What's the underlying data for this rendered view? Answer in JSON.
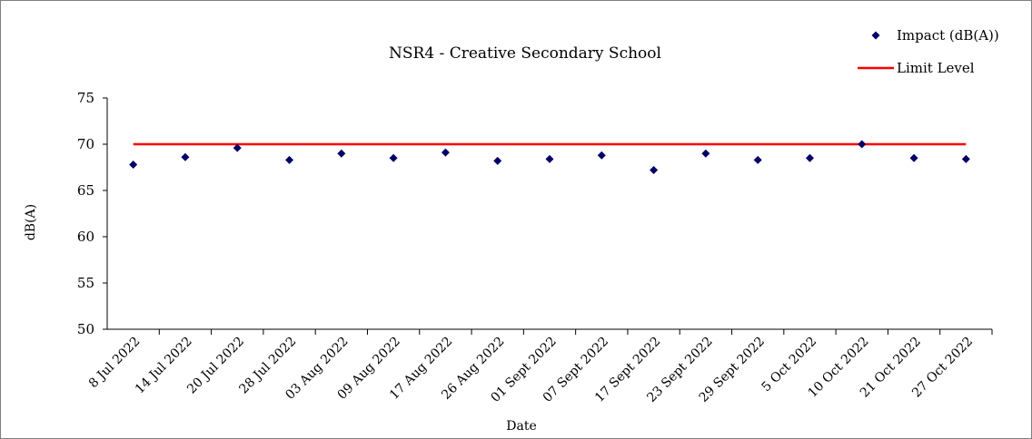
{
  "chart_data": {
    "type": "scatter",
    "title": "NSR4 - Creative Secondary School",
    "xlabel": "Date",
    "ylabel": "dB(A)",
    "ylim": [
      50,
      75
    ],
    "yticks": [
      50,
      55,
      60,
      65,
      70,
      75
    ],
    "grid": false,
    "legend_position": "top-right",
    "categories": [
      "8 Jul 2022",
      "14 Jul 2022",
      "20 Jul 2022",
      "28 Jul 2022",
      "03 Aug 2022",
      "09 Aug 2022",
      "17 Aug 2022",
      "26 Aug 2022",
      "01 Sept 2022",
      "07 Sept 2022",
      "17 Sept 2022",
      "23 Sept 2022",
      "29 Sept 2022",
      "5 Oct 2022",
      "10 Oct 2022",
      "21 Oct 2022",
      "27 Oct 2022"
    ],
    "series": [
      {
        "name": "Impact (dB(A))",
        "kind": "scatter",
        "marker": "diamond",
        "color": "#000066",
        "values": [
          67.8,
          68.6,
          69.6,
          68.3,
          69.0,
          68.5,
          69.1,
          68.2,
          68.4,
          68.8,
          67.2,
          69.0,
          68.3,
          68.5,
          70.0,
          68.5,
          68.4
        ]
      },
      {
        "name": "Limit Level",
        "kind": "line",
        "color": "#ff0000",
        "values": [
          70,
          70,
          70,
          70,
          70,
          70,
          70,
          70,
          70,
          70,
          70,
          70,
          70,
          70,
          70,
          70,
          70
        ]
      }
    ]
  }
}
